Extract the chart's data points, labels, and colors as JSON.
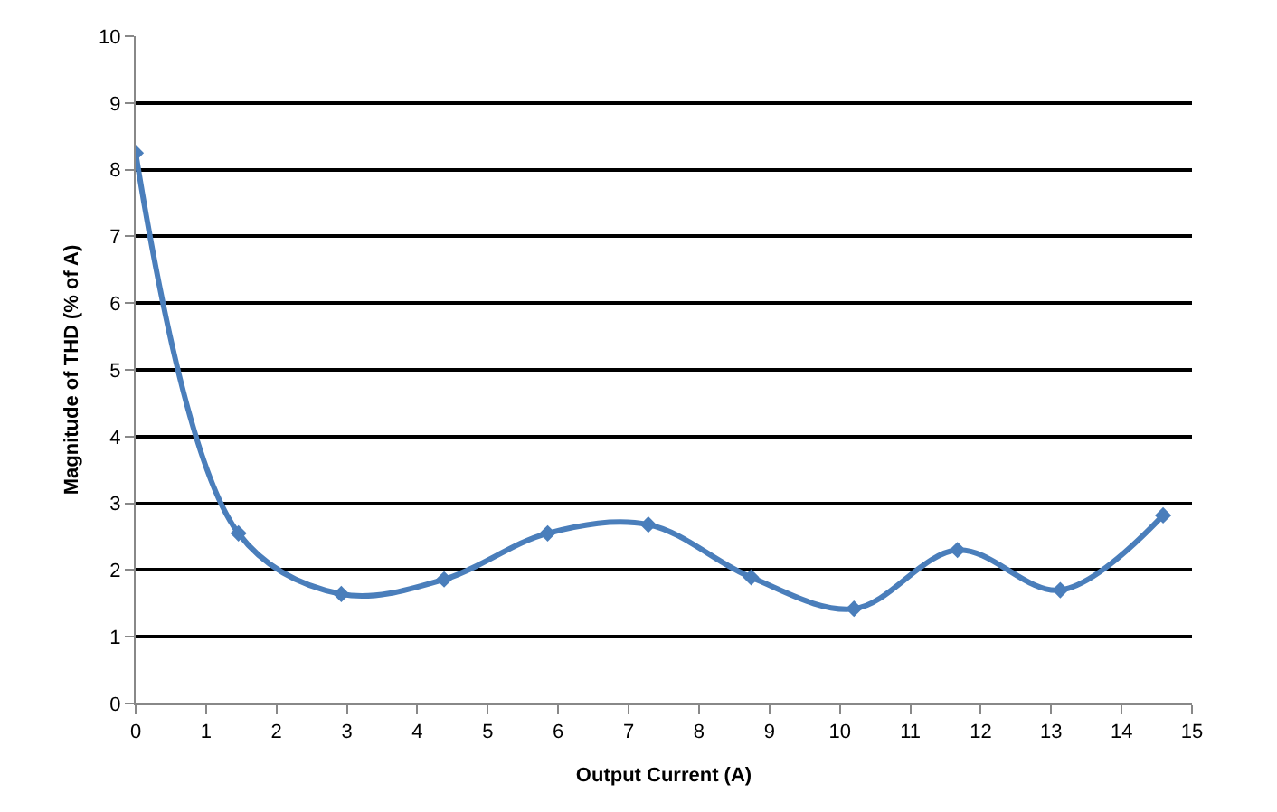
{
  "chart_data": {
    "type": "line",
    "xlabel": "Output Current (A)",
    "ylabel": "Magnitude of THD (% of A)",
    "x": [
      0,
      1.46,
      2.92,
      4.38,
      5.85,
      7.28,
      8.74,
      10.2,
      11.67,
      13.13,
      14.59
    ],
    "series": [
      {
        "color": "#4a7ebb",
        "values": [
          8.25,
          2.55,
          1.64,
          1.86,
          2.55,
          2.68,
          1.89,
          1.42,
          2.3,
          1.7,
          2.82
        ]
      }
    ],
    "xlim": [
      0,
      15
    ],
    "xticks": [
      0,
      1,
      2,
      3,
      4,
      5,
      6,
      7,
      8,
      9,
      10,
      11,
      12,
      13,
      14,
      15
    ],
    "ylim": [
      0,
      10
    ],
    "yticks": [
      0,
      1,
      2,
      3,
      4,
      5,
      6,
      7,
      8,
      9,
      10
    ],
    "grid": "y",
    "legend": false,
    "marker": "diamond",
    "line_style": "solid"
  }
}
